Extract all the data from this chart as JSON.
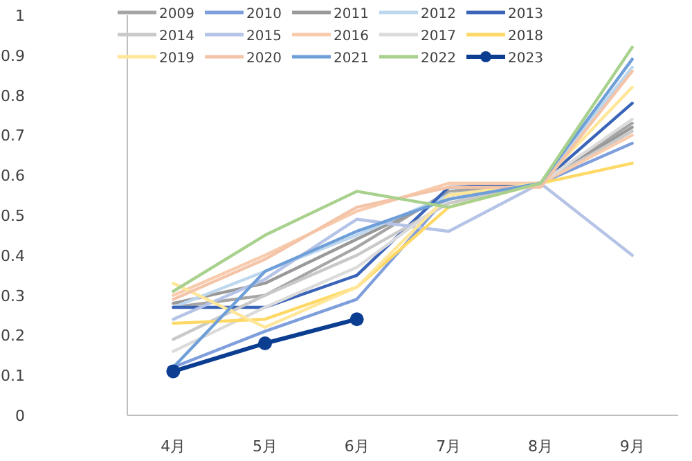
{
  "chart_data": {
    "type": "line",
    "categories": [
      "4月",
      "5月",
      "6月",
      "7月",
      "8月",
      "9月"
    ],
    "ylim": [
      0,
      1
    ],
    "yticks": [
      0,
      {
        "value": 0.1,
        "label": "0.1"
      },
      {
        "value": 0.2,
        "label": "0.2"
      },
      {
        "value": 0.3,
        "label": "0.3"
      },
      {
        "value": 0.4,
        "label": "0.4"
      },
      {
        "value": 0.5,
        "label": "0.5"
      },
      {
        "value": 0.6,
        "label": "0.6"
      },
      {
        "value": 0.7,
        "label": "0.7"
      },
      {
        "value": 0.8,
        "label": "0.8"
      },
      {
        "value": 0.9,
        "label": "0.9"
      },
      1
    ],
    "grid": false,
    "legend": "top",
    "marker": "none",
    "line_style": "solid",
    "series": [
      {
        "name": "2009",
        "color": "#a5a5a5",
        "values": [
          0.27,
          0.3,
          0.42,
          0.56,
          0.58,
          0.73
        ]
      },
      {
        "name": "2010",
        "color": "#7f9fdc",
        "values": [
          0.12,
          0.21,
          0.29,
          0.55,
          0.58,
          0.68
        ]
      },
      {
        "name": "2011",
        "color": "#999999",
        "values": [
          0.28,
          0.33,
          0.44,
          0.55,
          0.58,
          0.72
        ]
      },
      {
        "name": "2012",
        "color": "#bdd7ee",
        "values": [
          0.27,
          0.36,
          0.45,
          0.55,
          0.58,
          0.87
        ]
      },
      {
        "name": "2013",
        "color": "#3a64b8",
        "values": [
          0.27,
          0.27,
          0.35,
          0.57,
          0.58,
          0.78
        ]
      },
      {
        "name": "2014",
        "color": "#c9c9c9",
        "values": [
          0.19,
          0.3,
          0.4,
          0.53,
          0.58,
          0.71
        ]
      },
      {
        "name": "2015",
        "color": "#b4c3e6",
        "values": [
          0.24,
          0.34,
          0.49,
          0.46,
          0.58,
          0.4
        ]
      },
      {
        "name": "2016",
        "color": "#f8cbad",
        "values": [
          0.3,
          0.4,
          0.51,
          0.58,
          0.58,
          0.7
        ]
      },
      {
        "name": "2017",
        "color": "#dbdbdb",
        "values": [
          0.16,
          0.27,
          0.37,
          0.54,
          0.58,
          0.74
        ]
      },
      {
        "name": "2018",
        "color": "#ffd966",
        "values": [
          0.23,
          0.24,
          0.32,
          0.52,
          0.58,
          0.63
        ]
      },
      {
        "name": "2019",
        "color": "#ffe699",
        "values": [
          0.33,
          0.22,
          0.32,
          0.55,
          0.58,
          0.82
        ]
      },
      {
        "name": "2020",
        "color": "#f4c4a8",
        "values": [
          0.29,
          0.39,
          0.52,
          0.57,
          0.57,
          0.86
        ]
      },
      {
        "name": "2021",
        "color": "#6f9fd8",
        "values": [
          0.12,
          0.36,
          0.46,
          0.54,
          0.58,
          0.89
        ]
      },
      {
        "name": "2022",
        "color": "#a9d18e",
        "values": [
          0.31,
          0.45,
          0.56,
          0.52,
          0.58,
          0.92
        ]
      },
      {
        "name": "2023",
        "color": "#0b3d91",
        "marker": "circle",
        "values": [
          0.11,
          0.18,
          0.24,
          null,
          null,
          null
        ]
      }
    ]
  }
}
